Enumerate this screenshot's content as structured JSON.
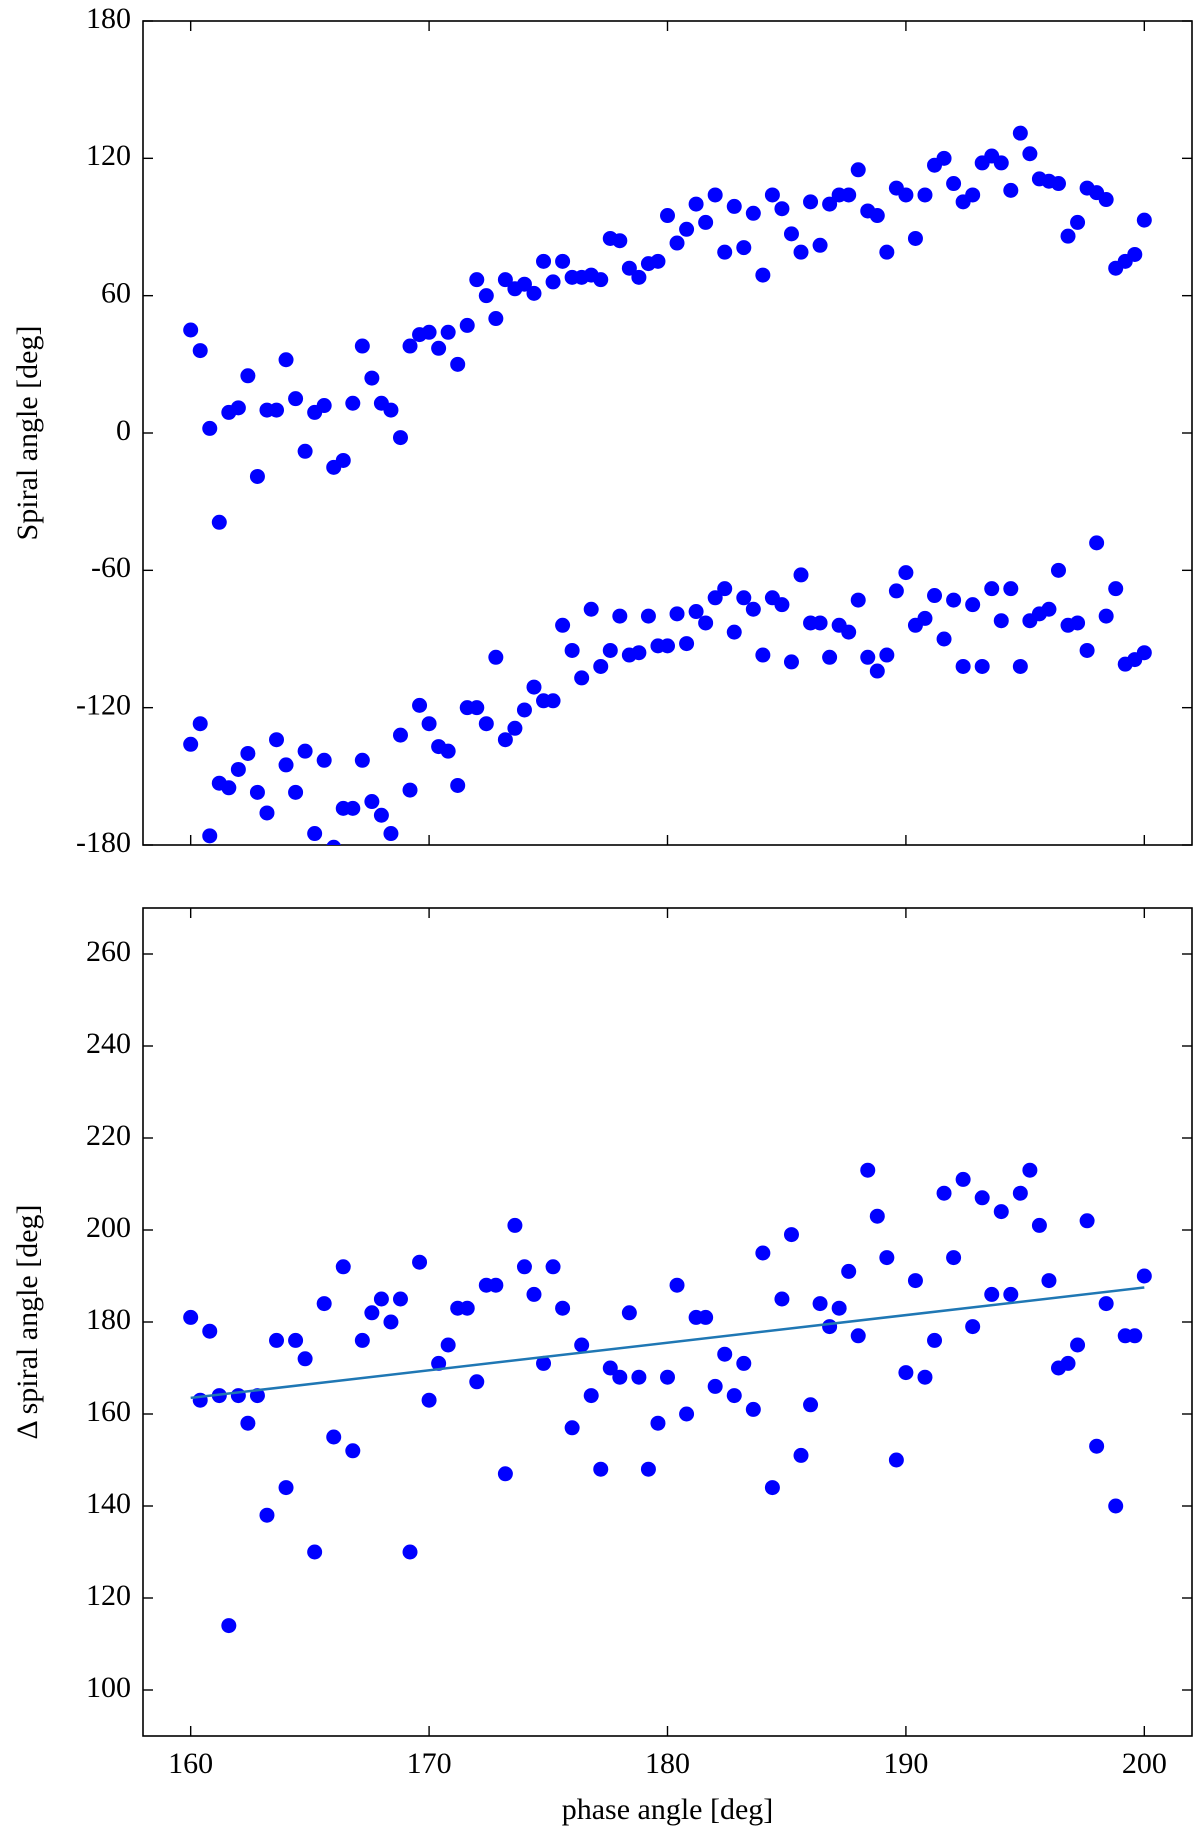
{
  "chart_data": [
    {
      "type": "scatter",
      "ylabel": "Spiral angle [deg]",
      "x": [
        160,
        160.4,
        160.8,
        161.2,
        161.6,
        162,
        162.4,
        162.8,
        163.2,
        163.6,
        164,
        164.4,
        164.8,
        165.2,
        165.6,
        166,
        166.4,
        166.8,
        167.2,
        167.6,
        168,
        168.4,
        168.8,
        169.2,
        169.6,
        170,
        170.4,
        170.8,
        171.2,
        171.6,
        172,
        172.4,
        172.8,
        173.2,
        173.6,
        174,
        174.4,
        174.8,
        175.2,
        175.6,
        176,
        176.4,
        176.8,
        177.2,
        177.6,
        178,
        178.4,
        178.8,
        179.2,
        179.6,
        180,
        180.4,
        180.8,
        181.2,
        181.6,
        182,
        182.4,
        182.8,
        183.2,
        183.6,
        184,
        184.4,
        184.8,
        185.2,
        185.6,
        186,
        186.4,
        186.8,
        187.2,
        187.6,
        188,
        188.4,
        188.8,
        189.2,
        189.6,
        190,
        190.4,
        190.8,
        191.2,
        191.6,
        192,
        192.4,
        192.8,
        193.2,
        193.6,
        194,
        194.4,
        194.8,
        195.2,
        195.6,
        196,
        196.4,
        196.8,
        197.2,
        197.6,
        198,
        198.4,
        198.8,
        199.2,
        199.6,
        200
      ],
      "series": [
        {
          "color": "#0000ff",
          "values": [
            45,
            36,
            2,
            -39,
            9,
            11,
            25,
            -19,
            10,
            10,
            32,
            15,
            -8,
            9,
            12,
            -15,
            -12,
            13,
            38,
            24,
            13,
            10,
            -2,
            38,
            43,
            44,
            37,
            44,
            30,
            47,
            67,
            60,
            50,
            67,
            63,
            65,
            61,
            75,
            66,
            75,
            68,
            68,
            69,
            67,
            85,
            84,
            72,
            68,
            74,
            75,
            95,
            83,
            89,
            100,
            92,
            104,
            79,
            99,
            81,
            96,
            69,
            104,
            98,
            87,
            79,
            101,
            82,
            100,
            104,
            104,
            115,
            97,
            95,
            79,
            107,
            104,
            85,
            104,
            117,
            120,
            109,
            101,
            104,
            118,
            121,
            118,
            106,
            131,
            122,
            111,
            110,
            109,
            86,
            92,
            107,
            105,
            102,
            72,
            75,
            78,
            93
          ]
        },
        {
          "color": "#0000ff",
          "values": [
            -136,
            -127,
            -176,
            -153,
            -155,
            -147,
            -140,
            -157,
            -166,
            -134,
            -145,
            -157,
            -139,
            -175,
            -143,
            -181,
            -164,
            -164,
            -143,
            -161,
            -167,
            -175,
            -132,
            -156,
            -119,
            -127,
            -137,
            -139,
            -154,
            -120,
            -120,
            -127,
            -98,
            -134,
            -129,
            -121,
            -111,
            -117,
            -117,
            -84,
            -95,
            -107,
            -77,
            -102,
            -95,
            -80,
            -97,
            -96,
            -80,
            -93,
            -93,
            -79,
            -92,
            -78,
            -83,
            -72,
            -68,
            -87,
            -72,
            -77,
            -97,
            -72,
            -75,
            -100,
            -62,
            -83,
            -83,
            -98,
            -84,
            -87,
            -73,
            -98,
            -104,
            -97,
            -69,
            -61,
            -84,
            -81,
            -71,
            -90,
            -73,
            -102,
            -75,
            -102,
            -68,
            -82,
            -68,
            -102,
            -82,
            -79,
            -77,
            -60,
            -84,
            -83,
            -95,
            -48,
            -80,
            -68,
            -101,
            -99,
            -96
          ]
        }
      ],
      "xlim": [
        158,
        202
      ],
      "xticks": [
        160,
        170,
        180,
        190,
        200
      ],
      "ylim": [
        -180,
        180
      ],
      "yticks": [
        -180,
        -120,
        -60,
        0,
        60,
        120,
        180
      ]
    },
    {
      "type": "scatter",
      "ylabel": "Δ spiral angle [deg]",
      "xlabel": "phase angle [deg]",
      "x": [
        160,
        160.4,
        160.8,
        161.2,
        161.6,
        162,
        162.4,
        162.8,
        163.2,
        163.6,
        164,
        164.4,
        164.8,
        165.2,
        165.6,
        166,
        166.4,
        166.8,
        167.2,
        167.6,
        168,
        168.4,
        168.8,
        169.2,
        169.6,
        170,
        170.4,
        170.8,
        171.2,
        171.6,
        172,
        172.4,
        172.8,
        173.2,
        173.6,
        174,
        174.4,
        174.8,
        175.2,
        175.6,
        176,
        176.4,
        176.8,
        177.2,
        177.6,
        178,
        178.4,
        178.8,
        179.2,
        179.6,
        180,
        180.4,
        180.8,
        181.2,
        181.6,
        182,
        182.4,
        182.8,
        183.2,
        183.6,
        184,
        184.4,
        184.8,
        185.2,
        185.6,
        186,
        186.4,
        186.8,
        187.2,
        187.6,
        188,
        188.4,
        188.8,
        189.2,
        189.6,
        190,
        190.4,
        190.8,
        191.2,
        191.6,
        192,
        192.4,
        192.8,
        193.2,
        193.6,
        194,
        194.4,
        194.8,
        195.2,
        195.6,
        196,
        196.4,
        196.8,
        197.2,
        197.6,
        198,
        198.4,
        198.8,
        199.2,
        199.6,
        200
      ],
      "series": [
        {
          "color": "#0000ff",
          "values": [
            181,
            163,
            178,
            164,
            114,
            164,
            158,
            164,
            138,
            176,
            144,
            176,
            172,
            130,
            184,
            155,
            192,
            152,
            176,
            182,
            185,
            180,
            185,
            130,
            193,
            163,
            171,
            175,
            183,
            183,
            167,
            188,
            188,
            147,
            201,
            192,
            186,
            171,
            192,
            183,
            157,
            175,
            164,
            148,
            170,
            168,
            182,
            168,
            148,
            158,
            168,
            188,
            160,
            181,
            181,
            166,
            173,
            164,
            171,
            161,
            195,
            144,
            185,
            199,
            151,
            162,
            184,
            179,
            183,
            191,
            177,
            213,
            203,
            194,
            150,
            169,
            189,
            168,
            176,
            208,
            194,
            211,
            179,
            207,
            186,
            204,
            186,
            208,
            213,
            201,
            189,
            170,
            171,
            175,
            202,
            153,
            184,
            140,
            177,
            177,
            190
          ]
        }
      ],
      "fit": {
        "type": "line",
        "color": "#1f77b4",
        "x": [
          160,
          200
        ],
        "values": [
          163.5,
          187.5
        ]
      },
      "xlim": [
        158,
        202
      ],
      "xticks": [
        160,
        170,
        180,
        190,
        200
      ],
      "ylim": [
        90,
        270
      ],
      "yticks": [
        100,
        120,
        140,
        160,
        180,
        200,
        220,
        240,
        260
      ]
    }
  ]
}
